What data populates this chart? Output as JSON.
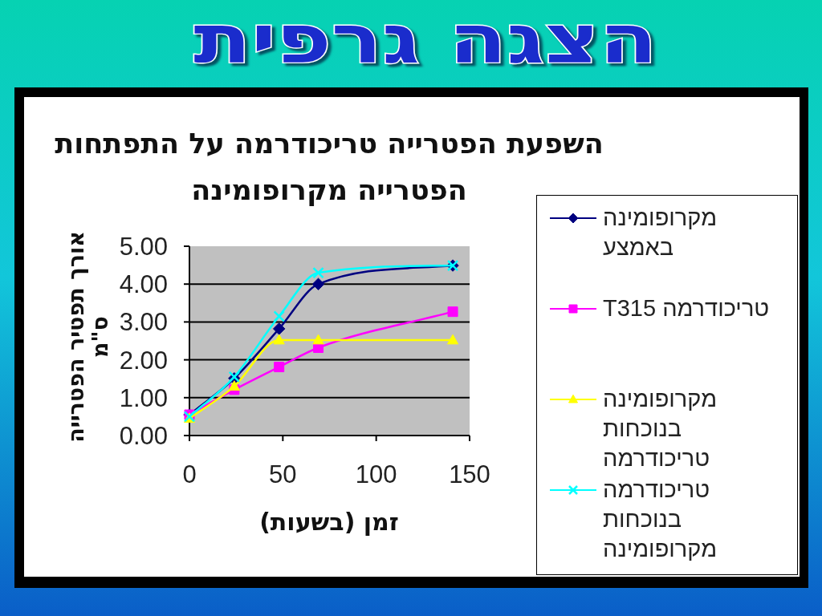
{
  "chart_data": {
    "type": "line",
    "title": "השפעת הפטרייה טריכודרמה על התפתחות הפטרייה מקרופומינה",
    "xlabel": "זמן (בשעות)",
    "ylabel": "אורך תפטיר הפטרייה ס\"מ",
    "annotations": [
      "הצגה גרפית"
    ],
    "x": [
      0,
      24,
      48,
      69,
      141
    ],
    "xlim": [
      0,
      150
    ],
    "xticks": [
      0,
      50,
      100,
      150
    ],
    "ylim": [
      0,
      5
    ],
    "yticks": [
      {
        "value": 0,
        "label": "0.00"
      },
      {
        "value": 1,
        "label": "1.00"
      },
      {
        "value": 2,
        "label": "2.00"
      },
      {
        "value": 3,
        "label": "3.00"
      },
      {
        "value": 4,
        "label": "4.00"
      },
      {
        "value": 5,
        "label": "5.00"
      }
    ],
    "grid": "y",
    "legend": "right",
    "series": [
      {
        "name": "מקרופומינה באמצע",
        "color": "#000080",
        "marker": "diamond",
        "values": [
          0.55,
          1.51,
          2.82,
          4.0,
          4.49
        ]
      },
      {
        "name": "טריכודרמה T315",
        "color": "#ff00ff",
        "marker": "square",
        "values": [
          0.55,
          1.21,
          1.81,
          2.32,
          3.27
        ]
      },
      {
        "name": "מקרופומינה בנוכחות טריכודרמה",
        "color": "#ffff00",
        "marker": "triangle",
        "values": [
          0.45,
          1.3,
          2.52,
          2.52,
          2.52
        ]
      },
      {
        "name": "טריכודרמה בנוכחות מקרופומינה",
        "color": "#00ffff",
        "marker": "cross",
        "values": [
          0.5,
          1.55,
          3.15,
          4.3,
          4.49
        ]
      }
    ]
  }
}
